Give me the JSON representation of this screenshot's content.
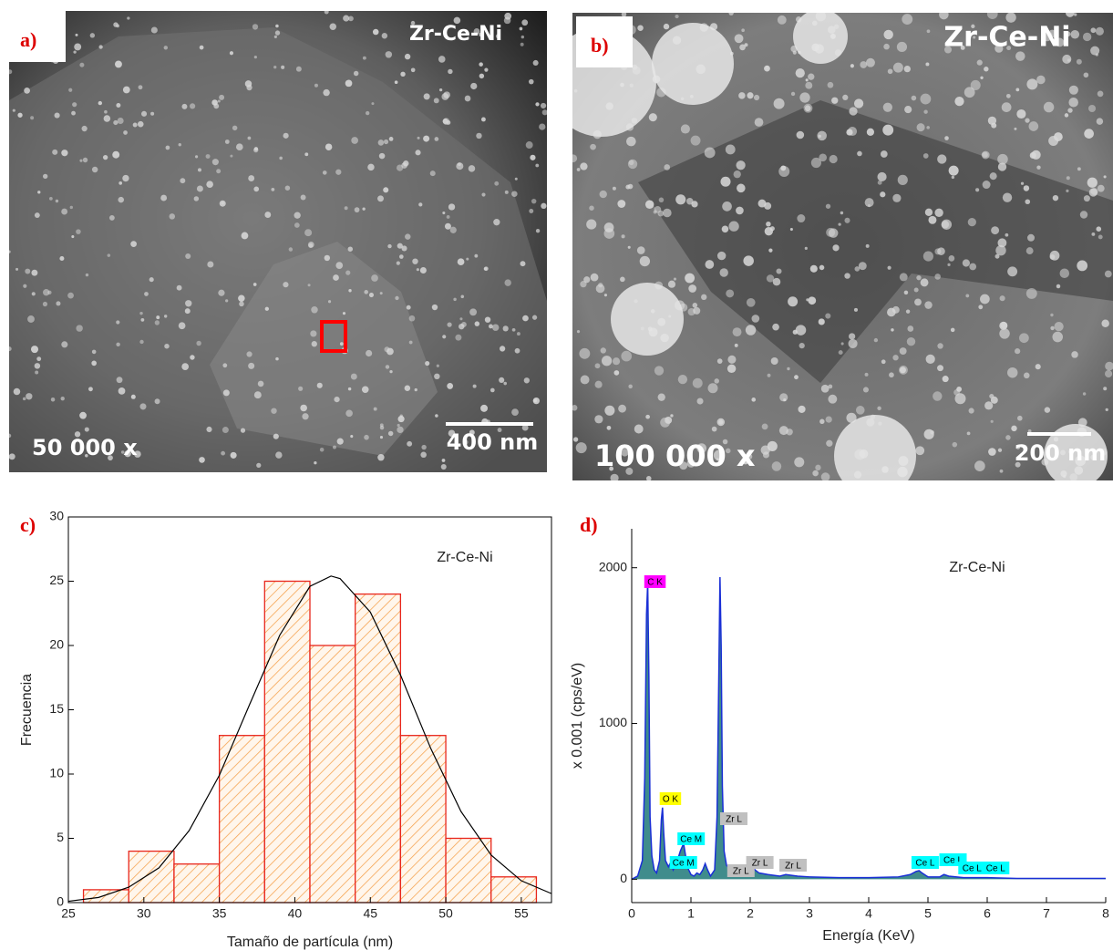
{
  "images": [
    {
      "label": "a)",
      "sample": "Zr-Ce-Ni",
      "magnification": "50 000 x",
      "scale_bar": "400 nm"
    },
    {
      "label": "b)",
      "sample": "Zr-Ce-Ni",
      "magnification": "100 000 x",
      "scale_bar": "200 nm"
    }
  ],
  "chart_data": [
    {
      "type": "histogram",
      "label": "c)",
      "annotation": "Zr-Ce-Ni",
      "x_label": "Tamaño de partícula (nm)",
      "y_label": "Frecuencia",
      "bins": [
        26,
        29,
        32,
        35,
        38,
        41,
        44,
        47,
        50,
        53,
        56
      ],
      "values": [
        1,
        4,
        3,
        13,
        25,
        20,
        24,
        13,
        5,
        2
      ],
      "color": "#e8261c",
      "fit": {
        "x": [
          25,
          27,
          29,
          31,
          33,
          35,
          37,
          39,
          41,
          42.4,
          43,
          45,
          47,
          49,
          51,
          53,
          55,
          57
        ],
        "y": [
          0.1,
          0.4,
          1.2,
          2.7,
          5.6,
          9.9,
          15.4,
          20.8,
          24.6,
          25.4,
          25.2,
          22.6,
          17.7,
          12.0,
          7.1,
          3.7,
          1.7,
          0.7
        ]
      },
      "xlim": [
        25,
        57
      ],
      "ylim": [
        0,
        30
      ],
      "xticks": [
        25,
        30,
        35,
        40,
        45,
        50,
        55
      ],
      "yticks": [
        0,
        5,
        10,
        15,
        20,
        25,
        30
      ]
    },
    {
      "type": "line",
      "label": "d)",
      "annotation": "Zr-Ce-Ni",
      "x_label": "Energía (KeV)",
      "y_label": "x 0.001 (cps/eV)",
      "x": [
        0,
        0.1,
        0.18,
        0.22,
        0.25,
        0.27,
        0.29,
        0.31,
        0.34,
        0.38,
        0.42,
        0.47,
        0.5,
        0.52,
        0.54,
        0.57,
        0.62,
        0.66,
        0.7,
        0.74,
        0.78,
        0.82,
        0.86,
        0.88,
        0.91,
        0.95,
        1.0,
        1.05,
        1.1,
        1.15,
        1.2,
        1.24,
        1.28,
        1.33,
        1.4,
        1.44,
        1.47,
        1.49,
        1.51,
        1.53,
        1.56,
        1.6,
        1.7,
        1.8,
        1.9,
        2.0,
        2.04,
        2.08,
        2.15,
        2.3,
        2.5,
        2.6,
        2.8,
        3.0,
        3.5,
        4.0,
        4.5,
        4.7,
        4.8,
        4.85,
        4.9,
        5.0,
        5.2,
        5.27,
        5.35,
        5.6,
        6.0,
        6.5,
        7.0,
        7.5,
        8.0
      ],
      "series": [
        {
          "color": "#1a2fd6",
          "values": [
            0,
            20,
            120,
            650,
            1700,
            1900,
            1300,
            400,
            150,
            60,
            40,
            120,
            380,
            460,
            300,
            120,
            80,
            110,
            60,
            90,
            130,
            180,
            215,
            220,
            150,
            70,
            30,
            20,
            40,
            30,
            60,
            100,
            60,
            20,
            60,
            400,
            1300,
            1940,
            1500,
            600,
            180,
            90,
            40,
            40,
            50,
            70,
            90,
            60,
            40,
            30,
            20,
            30,
            20,
            15,
            10,
            10,
            15,
            30,
            50,
            55,
            40,
            15,
            15,
            30,
            20,
            10,
            10,
            5,
            5,
            5,
            5
          ]
        }
      ],
      "peak_labels": [
        {
          "text": "C K",
          "energy": 0.27,
          "color": "#ff00ff"
        },
        {
          "text": "O K",
          "energy": 0.53,
          "color": "#ffff00"
        },
        {
          "text": "Ce M",
          "energy": 0.88,
          "color": "#00ffff"
        },
        {
          "text": "Ce M",
          "energy": 0.75,
          "color": "#00ffff"
        },
        {
          "text": "Zr L",
          "energy": 1.6,
          "color": "#c0c0c0"
        },
        {
          "text": "Zr L",
          "energy": 1.72,
          "color": "#c0c0c0"
        },
        {
          "text": "Zr L",
          "energy": 2.04,
          "color": "#c0c0c0"
        },
        {
          "text": "Zr L",
          "energy": 2.6,
          "color": "#c0c0c0"
        },
        {
          "text": "Ce L",
          "energy": 4.83,
          "color": "#00ffff"
        },
        {
          "text": "Ce L",
          "energy": 5.3,
          "color": "#00ffff"
        },
        {
          "text": "Ce L",
          "energy": 5.62,
          "color": "#00ffff"
        },
        {
          "text": "Ce L",
          "energy": 6.02,
          "color": "#00ffff"
        }
      ],
      "fill_color": "#3f8c8c",
      "xlim": [
        0,
        8
      ],
      "ylim": [
        -150,
        2250
      ],
      "xticks": [
        0,
        1,
        2,
        3,
        4,
        5,
        6,
        7,
        8
      ],
      "yticks": [
        0,
        1000,
        2000
      ]
    }
  ]
}
